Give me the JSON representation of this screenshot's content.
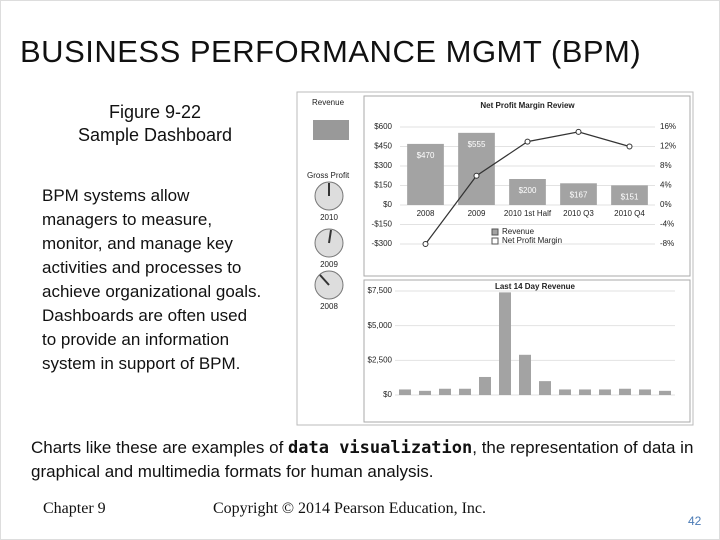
{
  "title": "BUSINESS PERFORMANCE MGMT (BPM)",
  "figure": {
    "number": "Figure 9-22",
    "caption": "Sample Dashboard"
  },
  "body": "BPM systems allow managers to measure, monitor, and manage key activities and processes to achieve organizational goals. Dashboards are often used to provide an information system in support of BPM.",
  "summary": {
    "before": "Charts like these are examples of ",
    "emphasis": "data visualization",
    "after": ", the representation of data in graphical and multimedia formats for human analysis."
  },
  "footer": {
    "chapter": "Chapter 9",
    "copyright": "Copyright © 2014 Pearson Education, Inc.",
    "page": "42"
  },
  "dashboard": {
    "revenue": "Revenue",
    "gross_profit": "Gross Profit",
    "gauges": [
      "2010",
      "2009",
      "2008"
    ]
  },
  "chart_data": [
    {
      "type": "bar",
      "title": "Net Profit Margin Review",
      "categories": [
        "2008",
        "2009",
        "2010 1st Half",
        "2010 Q3",
        "2010 Q4"
      ],
      "series": [
        {
          "name": "Revenue",
          "color": "#a3a3a3",
          "values": [
            470,
            555,
            200,
            167,
            151
          ],
          "value_labels": [
            "$470",
            "$555",
            "$200",
            "$167",
            "$151"
          ]
        },
        {
          "name": "Net Profit Margin",
          "color": "#333333",
          "axis": "y2",
          "values": [
            -8,
            6,
            13,
            15,
            12
          ]
        }
      ],
      "ylim": [
        -300,
        600
      ],
      "yticks": [
        {
          "value": 600,
          "label": "$600"
        },
        {
          "value": 450,
          "label": "$450"
        },
        {
          "value": 300,
          "label": "$300"
        },
        {
          "value": 150,
          "label": "$150"
        },
        {
          "value": 0,
          "label": "$0"
        },
        {
          "value": -150,
          "label": "-$150"
        },
        {
          "value": -300,
          "label": "-$300"
        }
      ],
      "y2lim": [
        -8,
        16
      ],
      "y2ticks": [
        {
          "value": 16,
          "label": "16%"
        },
        {
          "value": 12,
          "label": "12%"
        },
        {
          "value": 8,
          "label": "8%"
        },
        {
          "value": 4,
          "label": "4%"
        },
        {
          "value": 0,
          "label": "0%"
        },
        {
          "value": -4,
          "label": "-4%"
        },
        {
          "value": -8,
          "label": "-8%"
        }
      ]
    },
    {
      "type": "bar",
      "title": "Last 14 Day Revenue",
      "color": "#a3a3a3",
      "values": [
        400,
        300,
        450,
        450,
        1300,
        7400,
        2900,
        1000,
        400,
        400,
        400,
        450,
        400,
        300
      ],
      "ylim": [
        0,
        7500
      ],
      "yticks": [
        {
          "value": 7500,
          "label": "$7,500"
        },
        {
          "value": 5000,
          "label": "$5,000"
        },
        {
          "value": 2500,
          "label": "$2,500"
        },
        {
          "value": 0,
          "label": "$0"
        }
      ]
    }
  ]
}
